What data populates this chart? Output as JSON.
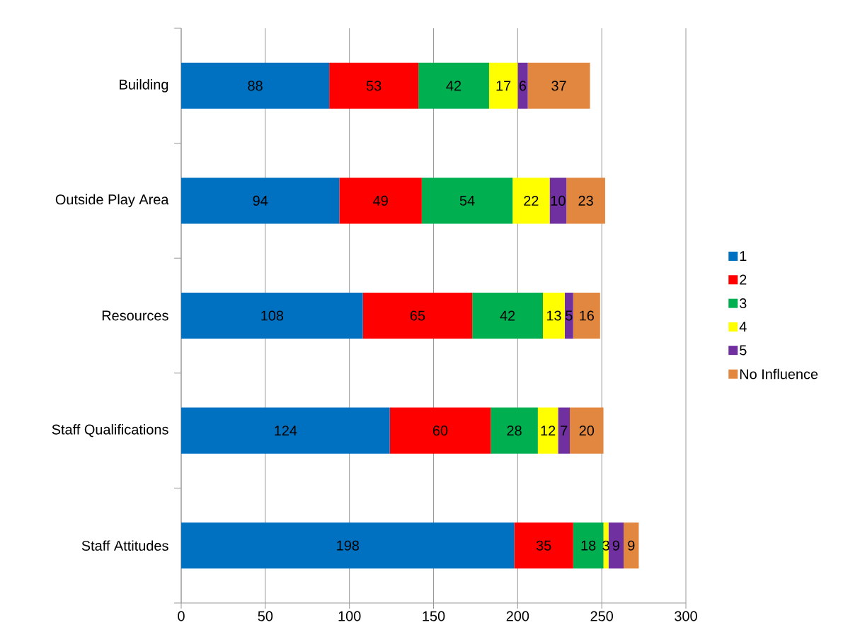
{
  "chart_data": {
    "type": "bar",
    "orientation": "horizontal",
    "stacked": true,
    "data_labels": true,
    "grid": "x",
    "legend": "right",
    "categories": [
      "Building",
      "Outside Play Area",
      "Resources",
      "Staff Qualifications",
      "Staff Attitudes"
    ],
    "xlim": [
      0,
      300
    ],
    "xticks": [
      0,
      50,
      100,
      150,
      200,
      250,
      300
    ],
    "series": [
      {
        "name": "1",
        "color": "#0070c0",
        "values": [
          88,
          94,
          108,
          124,
          198
        ]
      },
      {
        "name": "2",
        "color": "#ff0000",
        "values": [
          53,
          49,
          65,
          60,
          35
        ]
      },
      {
        "name": "3",
        "color": "#00b050",
        "values": [
          42,
          54,
          42,
          28,
          18
        ]
      },
      {
        "name": "4",
        "color": "#ffff00",
        "values": [
          17,
          22,
          13,
          12,
          3
        ]
      },
      {
        "name": "5",
        "color": "#7030a0",
        "values": [
          6,
          10,
          5,
          7,
          9
        ]
      },
      {
        "name": "No Influence",
        "color": "#e2873f",
        "values": [
          37,
          23,
          16,
          20,
          9
        ]
      }
    ]
  }
}
